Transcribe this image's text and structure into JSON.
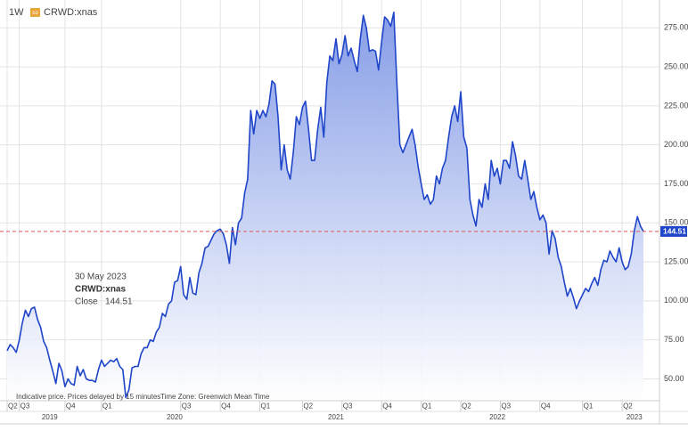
{
  "chart_data": {
    "type": "area",
    "interval": "1W",
    "symbol_badge": "co",
    "footer_notes": [
      "Indicative price. Prices delayed by 15 minutes",
      "Time Zone: Greenwich Mean Time"
    ],
    "tooltip": {
      "date": "30 May 2023",
      "symbol": "CRWD:xnas",
      "field": "Close"
    },
    "categories": [
      "Q2",
      null,
      null,
      null,
      "Q3",
      null,
      null,
      null,
      null,
      null,
      null,
      null,
      null,
      null,
      null,
      null,
      null,
      null,
      null,
      "Q4",
      null,
      null,
      null,
      null,
      null,
      null,
      null,
      null,
      null,
      null,
      null,
      "Q1",
      null,
      null,
      null,
      null,
      null,
      null,
      null,
      null,
      null,
      null,
      null,
      null,
      null,
      null,
      null,
      null,
      null,
      null,
      null,
      null,
      null,
      null,
      null,
      null,
      null,
      "Q3",
      null,
      null,
      null,
      null,
      null,
      null,
      null,
      null,
      null,
      null,
      null,
      null,
      "Q4",
      null,
      null,
      null,
      null,
      null,
      null,
      null,
      null,
      null,
      null,
      null,
      null,
      "Q1",
      null,
      null,
      null,
      null,
      null,
      null,
      null,
      null,
      null,
      null,
      null,
      null,
      null,
      "Q2",
      null,
      null,
      null,
      null,
      null,
      null,
      null,
      null,
      null,
      null,
      null,
      null,
      "Q3",
      null,
      null,
      null,
      null,
      null,
      null,
      null,
      null,
      null,
      null,
      null,
      null,
      "Q4",
      null,
      null,
      null,
      null,
      null,
      null,
      null,
      null,
      null,
      null,
      null,
      null,
      "Q1",
      null,
      null,
      null,
      null,
      null,
      null,
      null,
      null,
      null,
      null,
      null,
      null,
      "Q2",
      null,
      null,
      null,
      null,
      null,
      null,
      null,
      null,
      null,
      null,
      null,
      null,
      "Q3",
      null,
      null,
      null,
      null,
      null,
      null,
      null,
      null,
      null,
      null,
      null,
      null,
      "Q4",
      null,
      null,
      null,
      null,
      null,
      null,
      null,
      null,
      null,
      null,
      null,
      null,
      null,
      "Q1",
      null,
      null,
      null,
      null,
      null,
      null,
      null,
      null,
      null,
      null,
      null,
      null,
      "Q2",
      null,
      null,
      null,
      null,
      null,
      null,
      null
    ],
    "year_categories": [
      null,
      null,
      null,
      null,
      null,
      null,
      null,
      null,
      null,
      null,
      null,
      null,
      null,
      null,
      "2019",
      null,
      null,
      null,
      null,
      null,
      null,
      null,
      null,
      null,
      null,
      null,
      null,
      null,
      null,
      null,
      null,
      null,
      null,
      null,
      null,
      null,
      null,
      null,
      null,
      null,
      null,
      null,
      null,
      null,
      null,
      null,
      null,
      null,
      null,
      null,
      null,
      null,
      null,
      null,
      null,
      "2020",
      null,
      null,
      null,
      null,
      null,
      null,
      null,
      null,
      null,
      null,
      null,
      null,
      null,
      null,
      null,
      null,
      null,
      null,
      null,
      null,
      null,
      null,
      null,
      null,
      null,
      null,
      null,
      null,
      null,
      null,
      null,
      null,
      null,
      null,
      null,
      null,
      null,
      null,
      null,
      null,
      null,
      null,
      null,
      null,
      null,
      null,
      null,
      null,
      null,
      null,
      null,
      null,
      "2021",
      null,
      null,
      null,
      null,
      null,
      null,
      null,
      null,
      null,
      null,
      null,
      null,
      null,
      null,
      null,
      null,
      null,
      null,
      null,
      null,
      null,
      null,
      null,
      null,
      null,
      null,
      null,
      null,
      null,
      null,
      null,
      null,
      null,
      null,
      null,
      null,
      null,
      null,
      null,
      null,
      null,
      null,
      null,
      null,
      null,
      null,
      null,
      null,
      null,
      null,
      null,
      null,
      "2022",
      null,
      null,
      null,
      null,
      null,
      null,
      null,
      null,
      null,
      null,
      null,
      null,
      null,
      null,
      null,
      null,
      null,
      null,
      null,
      null,
      null,
      null,
      null,
      null,
      null,
      null,
      null,
      null,
      null,
      null,
      null,
      null,
      null,
      null,
      null,
      null,
      null,
      null,
      null,
      null,
      null,
      null,
      null,
      null,
      "2023",
      null,
      null,
      null
    ],
    "series": [
      {
        "name": "CRWD:xnas",
        "color": "#1f45c9",
        "values": [
          68,
          72,
          70,
          67,
          75,
          86,
          94,
          90,
          95,
          96,
          88,
          83,
          74,
          70,
          62,
          55,
          47,
          60,
          55,
          45,
          50,
          47,
          46,
          58,
          52,
          56,
          50,
          49,
          49,
          48,
          56,
          62,
          58,
          60,
          62,
          61,
          63,
          58,
          56,
          38,
          43,
          57,
          58,
          58,
          66,
          70,
          70,
          75,
          74,
          80,
          83,
          92,
          90,
          98,
          100,
          112,
          113,
          122,
          104,
          101,
          115,
          105,
          104,
          118,
          124,
          134,
          135,
          139,
          143,
          145,
          146,
          143,
          136,
          124,
          147,
          136,
          150,
          153,
          169,
          178,
          222,
          207,
          222,
          217,
          222,
          218,
          226,
          241,
          239,
          218,
          184,
          200,
          184,
          178,
          195,
          218,
          213,
          224,
          228,
          210,
          190,
          190,
          210,
          224,
          205,
          240,
          257,
          254,
          268,
          252,
          258,
          270,
          257,
          262,
          254,
          247,
          268,
          283,
          275,
          260,
          261,
          260,
          248,
          266,
          282,
          280,
          276,
          285,
          240,
          200,
          195,
          200,
          205,
          210,
          200,
          186,
          175,
          165,
          168,
          162,
          165,
          180,
          175,
          185,
          190,
          205,
          218,
          225,
          215,
          234,
          205,
          198,
          165,
          155,
          148,
          165,
          160,
          175,
          165,
          190,
          180,
          185,
          175,
          190,
          190,
          185,
          202,
          193,
          180,
          178,
          190,
          178,
          165,
          170,
          160,
          152,
          155,
          150,
          130,
          145,
          140,
          128,
          122,
          112,
          103,
          108,
          102,
          95,
          100,
          104,
          108,
          106,
          111,
          115,
          110,
          120,
          126,
          125,
          132,
          128,
          125,
          134,
          125,
          120,
          122,
          130,
          145,
          154,
          148,
          144.51
        ]
      }
    ],
    "ylim": [
      36,
      290
    ],
    "yticks": [
      {
        "value": 50,
        "label": "50.00"
      },
      {
        "value": 75,
        "label": "75.00"
      },
      {
        "value": 100,
        "label": "100.00"
      },
      {
        "value": 125,
        "label": "125.00"
      },
      {
        "value": 150,
        "label": "150.00"
      },
      {
        "value": 175,
        "label": "175.00"
      },
      {
        "value": 200,
        "label": "200.00"
      },
      {
        "value": 225,
        "label": "225.00"
      },
      {
        "value": 250,
        "label": "250.00"
      },
      {
        "value": 275,
        "label": "275.00"
      }
    ],
    "grid": true,
    "last_line_color": "#e05555"
  }
}
